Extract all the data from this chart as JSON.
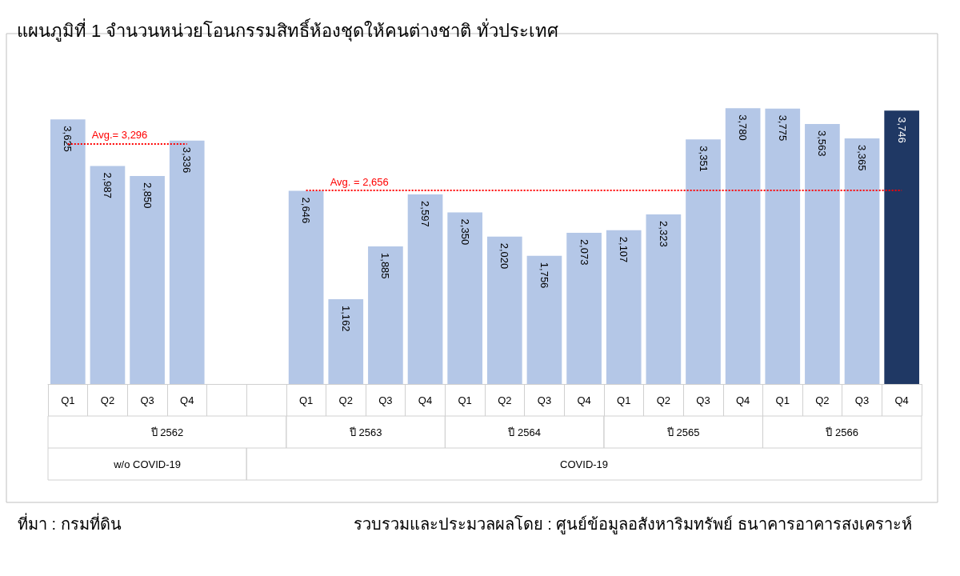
{
  "chart_data": {
    "type": "bar",
    "title": "แผนภูมิที่ 1 จำนวนหน่วยโอนกรรมสิทธิ์ห้องชุดให้คนต่างชาติ ทั่วประเทศ",
    "categories": [
      "Q1",
      "Q2",
      "Q3",
      "Q4",
      null,
      null,
      "Q1",
      "Q2",
      "Q3",
      "Q4",
      "Q1",
      "Q2",
      "Q3",
      "Q4",
      "Q1",
      "Q2",
      "Q3",
      "Q4",
      "Q1",
      "Q2",
      "Q3",
      "Q4"
    ],
    "values": [
      3625,
      2987,
      2850,
      3336,
      null,
      null,
      2646,
      1162,
      1885,
      2597,
      2350,
      2020,
      1756,
      2073,
      2107,
      2323,
      3351,
      3780,
      3775,
      3563,
      3365,
      3746
    ],
    "colors": [
      "#b4c7e7",
      "#b4c7e7",
      "#b4c7e7",
      "#b4c7e7",
      "#b4c7e7",
      "#b4c7e7",
      "#b4c7e7",
      "#b4c7e7",
      "#b4c7e7",
      "#b4c7e7",
      "#b4c7e7",
      "#b4c7e7",
      "#b4c7e7",
      "#b4c7e7",
      "#b4c7e7",
      "#b4c7e7",
      "#b4c7e7",
      "#b4c7e7",
      "#b4c7e7",
      "#b4c7e7",
      "#b4c7e7",
      "#1f3864"
    ],
    "value_labels": [
      "3,625",
      "2,987",
      "2,850",
      "3,336",
      null,
      null,
      "2,646",
      "1,162",
      "1,885",
      "2,597",
      "2,350",
      "2,020",
      "1,756",
      "2,073",
      "2,107",
      "2,323",
      "3,351",
      "3,780",
      "3,775",
      "3,563",
      "3,365",
      "3,746"
    ],
    "ref_lines": [
      {
        "axis": "y",
        "value": 3296,
        "label": "Avg.= 3,296",
        "color": "#ff0000",
        "line_style": "dotted"
      },
      {
        "axis": "y",
        "value": 2656,
        "label": "Avg. = 2,656",
        "color": "#ff0000",
        "line_style": "dotted"
      }
    ],
    "annotations": [
      "ปี 2562",
      "ปี 2563",
      "ปี 2564",
      "ปี 2565",
      "ปี 2566",
      "w/o COVID-19",
      "COVID-19",
      "ที่มา : กรมที่ดิน",
      "รวบรวมและประมวลผลโดย : ศูนย์ข้อมูลอสังหาริมทรัพย์ ธนาคารอาคารสงเคราะห์"
    ],
    "grid": false
  }
}
